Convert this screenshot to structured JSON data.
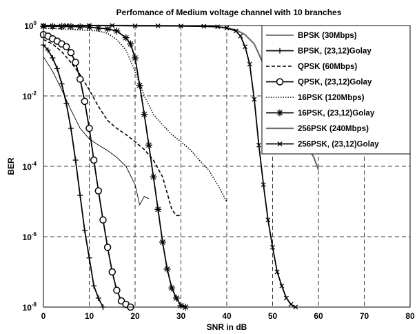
{
  "chart_data": {
    "type": "line",
    "title": "Perfomance of Medium voltage channel with 10 branches",
    "xlabel": "SNR in dB",
    "ylabel": "BER",
    "xlim": [
      0,
      80
    ],
    "ylim": [
      1e-08,
      1
    ],
    "yscale": "log",
    "grid": true,
    "legend_position": "top-right",
    "x_ticks": [
      0,
      10,
      20,
      30,
      40,
      50,
      60,
      70,
      80
    ],
    "x_tick_labels": [
      "0",
      "10",
      "20",
      "30",
      "40",
      "50",
      "60",
      "70",
      "80"
    ],
    "y_ticks": [
      1,
      0.01,
      0.0001,
      1e-06,
      1e-08
    ],
    "y_tick_labels": [
      {
        "base": "10",
        "exp": "0"
      },
      {
        "base": "10",
        "exp": "-2"
      },
      {
        "base": "10",
        "exp": "-4"
      },
      {
        "base": "10",
        "exp": "-6"
      },
      {
        "base": "10",
        "exp": "-8"
      }
    ],
    "series": [
      {
        "name": "BPSK (30Mbps)",
        "style": "thin",
        "marker": "none",
        "color": "#000000",
        "x": [
          0,
          2,
          4,
          6,
          8,
          10,
          12,
          14,
          16,
          18,
          20,
          21,
          22,
          23
        ],
        "y": [
          0.13,
          0.05,
          0.015,
          0.004,
          0.0012,
          0.0006,
          0.0004,
          0.00028,
          0.00018,
          0.0001,
          3e-05,
          8e-06,
          1.4e-05,
          1.2e-05
        ]
      },
      {
        "name": "BPSK, (23,12)Golay",
        "style": "solid",
        "marker": "plus",
        "color": "#000000",
        "x": [
          0,
          1,
          2,
          3,
          4,
          5,
          6,
          7,
          8,
          9,
          10,
          11,
          12,
          13
        ],
        "y": [
          0.28,
          0.2,
          0.12,
          0.06,
          0.022,
          0.006,
          0.0012,
          0.00015,
          1.5e-05,
          1.5e-06,
          2.5e-07,
          4e-08,
          1.8e-08,
          1e-08
        ]
      },
      {
        "name": "QPSK  (60Mbps)",
        "style": "dashed",
        "marker": "none",
        "color": "#000000",
        "x": [
          0,
          2,
          4,
          6,
          8,
          10,
          12,
          14,
          16,
          18,
          20,
          22,
          24,
          26,
          28,
          29,
          30
        ],
        "y": [
          0.4,
          0.3,
          0.18,
          0.09,
          0.04,
          0.015,
          0.005,
          0.002,
          0.0012,
          0.0008,
          0.0005,
          0.0003,
          0.00015,
          5e-05,
          6e-06,
          4e-06,
          4e-06
        ]
      },
      {
        "name": "QPSK, (23,12)Golay",
        "style": "solid",
        "marker": "circle",
        "color": "#000000",
        "x": [
          0,
          1,
          2,
          3,
          4,
          5,
          6,
          7,
          8,
          9,
          10,
          11,
          12,
          13,
          14,
          15,
          16,
          17,
          18,
          19
        ],
        "y": [
          0.55,
          0.5,
          0.42,
          0.36,
          0.3,
          0.25,
          0.17,
          0.09,
          0.03,
          0.007,
          0.0012,
          0.00015,
          2e-05,
          3e-06,
          5e-07,
          1e-07,
          3e-08,
          1.5e-08,
          1.2e-08,
          1e-08
        ]
      },
      {
        "name": "16PSK (120Mbps)",
        "style": "dotted",
        "marker": "none",
        "color": "#000000",
        "x": [
          0,
          4,
          8,
          12,
          14,
          16,
          18,
          20,
          22,
          24,
          26,
          28,
          30,
          32,
          34,
          36,
          38,
          40
        ],
        "y": [
          0.85,
          0.8,
          0.75,
          0.7,
          0.6,
          0.4,
          0.2,
          0.05,
          0.01,
          0.003,
          0.0015,
          0.0008,
          0.0005,
          0.0003,
          0.00015,
          8e-05,
          3e-05,
          1e-05
        ]
      },
      {
        "name": "16PSK, (23,12)Golay",
        "style": "solid",
        "marker": "star",
        "color": "#000000",
        "x": [
          0,
          2,
          4,
          6,
          8,
          10,
          12,
          14,
          16,
          18,
          19,
          20,
          21,
          22,
          23,
          24,
          25,
          26,
          27,
          28,
          29,
          30,
          31
        ],
        "y": [
          0.95,
          0.95,
          0.94,
          0.94,
          0.92,
          0.9,
          0.85,
          0.8,
          0.7,
          0.45,
          0.3,
          0.12,
          0.02,
          0.003,
          0.0004,
          5e-05,
          6e-06,
          7e-07,
          1.2e-07,
          3.5e-08,
          1.8e-08,
          1.1e-08,
          1e-08
        ]
      },
      {
        "name": "256PSK (240Mbps)",
        "style": "thick-gray",
        "marker": "none",
        "color": "#6e6e6e",
        "x": [
          0,
          10,
          20,
          30,
          36,
          38,
          40,
          42,
          44,
          46,
          48,
          50,
          52,
          54,
          56,
          57,
          58,
          59,
          60
        ],
        "y": [
          1,
          1,
          1,
          0.98,
          0.95,
          0.92,
          0.85,
          0.75,
          0.55,
          0.3,
          0.08,
          0.01,
          0.002,
          0.0008,
          0.0004,
          0.00035,
          0.0003,
          0.00018,
          8e-05
        ]
      },
      {
        "name": "256PSK, (23,12)Golay",
        "style": "solid",
        "marker": "x",
        "color": "#000000",
        "x": [
          0,
          5,
          10,
          15,
          20,
          25,
          30,
          35,
          38,
          40,
          42,
          43,
          44,
          45,
          46,
          47,
          48,
          49,
          50,
          51,
          52,
          53,
          54,
          55
        ],
        "y": [
          1,
          1,
          1,
          1,
          0.98,
          0.98,
          0.97,
          0.95,
          0.92,
          0.85,
          0.7,
          0.5,
          0.25,
          0.08,
          0.008,
          0.0004,
          3e-05,
          3e-06,
          5e-07,
          1e-07,
          4e-08,
          1.8e-08,
          1.2e-08,
          1e-08
        ]
      }
    ]
  }
}
